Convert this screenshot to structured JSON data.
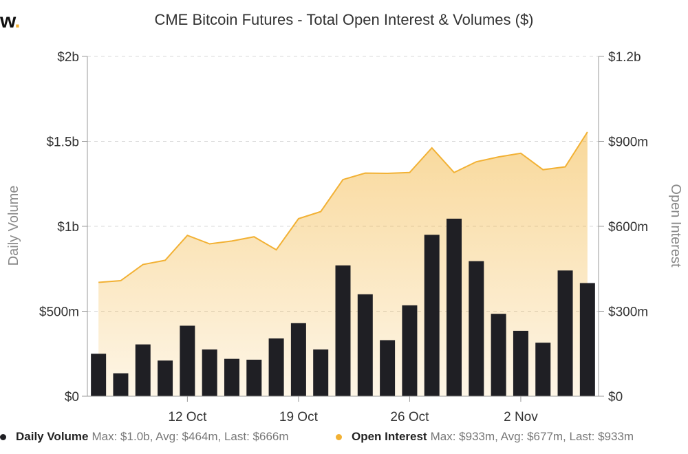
{
  "brand": {
    "logo_text": "w",
    "logo_dot": "."
  },
  "chart_data": {
    "type": "bar+area",
    "title": "CME Bitcoin Futures - Total Open Interest & Volumes ($)",
    "x_ticks": [
      "12 Oct",
      "19 Oct",
      "26 Oct",
      "2 Nov"
    ],
    "y_left": {
      "label": "Daily Volume",
      "ticks": [
        "$0",
        "$500m",
        "$1b",
        "$1.5b",
        "$2b"
      ],
      "range": [
        0,
        2000000000
      ]
    },
    "y_right": {
      "label": "Open Interest",
      "ticks": [
        "$0",
        "$300m",
        "$600m",
        "$900m",
        "$1.2b"
      ],
      "range": [
        0,
        1200000000
      ]
    },
    "grid": true,
    "legend_position": "bottom",
    "series": [
      {
        "name": "Daily Volume",
        "type": "bar",
        "axis": "left",
        "color": "#1f1f24",
        "stats": "Max: $1.0b, Avg: $464m, Last: $666m",
        "values": [
          250000000,
          135000000,
          305000000,
          210000000,
          415000000,
          275000000,
          220000000,
          215000000,
          340000000,
          430000000,
          275000000,
          770000000,
          600000000,
          330000000,
          535000000,
          950000000,
          1045000000,
          795000000,
          485000000,
          385000000,
          315000000,
          740000000,
          666000000
        ]
      },
      {
        "name": "Open Interest",
        "type": "area",
        "axis": "right",
        "color": "#f2b134",
        "stats": "Max: $933m, Avg: $677m, Last: $933m",
        "values": [
          402000000,
          408000000,
          465000000,
          480000000,
          568000000,
          538000000,
          548000000,
          563000000,
          517000000,
          627000000,
          652000000,
          765000000,
          788000000,
          787000000,
          790000000,
          877000000,
          790000000,
          828000000,
          845000000,
          858000000,
          800000000,
          810000000,
          933000000
        ]
      }
    ],
    "x_tick_positions_index": [
      4,
      9,
      14,
      19
    ]
  }
}
